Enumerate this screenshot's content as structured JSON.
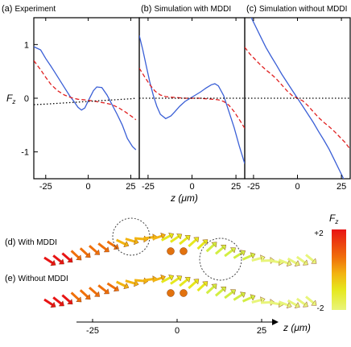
{
  "chart_data": [
    {
      "type": "line",
      "panel": "(a)",
      "title": "Experiment",
      "ylabel": "F",
      "ylabel_sub": "z",
      "xlim": [
        -32,
        30
      ],
      "ylim": [
        -1.5,
        1.5
      ],
      "yticks": [
        1,
        0,
        -1
      ],
      "xticks": [
        -25,
        0,
        25
      ],
      "series": [
        {
          "style": "solid",
          "color": "#3a5fd6",
          "x": [
            -32,
            -28,
            -25,
            -22,
            -20,
            -17,
            -14,
            -11,
            -8,
            -6,
            -4,
            -2,
            0,
            3,
            5,
            8,
            11,
            14,
            17,
            20,
            23,
            26,
            28
          ],
          "y": [
            0.96,
            0.9,
            0.74,
            0.6,
            0.5,
            0.35,
            0.2,
            0.05,
            -0.08,
            -0.17,
            -0.22,
            -0.18,
            -0.05,
            0.14,
            0.21,
            0.2,
            0.06,
            -0.12,
            -0.3,
            -0.5,
            -0.75,
            -0.9,
            -0.96
          ]
        },
        {
          "style": "dashed",
          "color": "#e02020",
          "x": [
            -32,
            -28,
            -25,
            -22,
            -18,
            -14,
            -10,
            -6,
            -2,
            0,
            3,
            6,
            10,
            14,
            18,
            22,
            26,
            28
          ],
          "y": [
            0.7,
            0.53,
            0.39,
            0.26,
            0.14,
            0.06,
            0.01,
            -0.02,
            -0.03,
            -0.04,
            -0.05,
            -0.07,
            -0.09,
            -0.12,
            -0.18,
            -0.26,
            -0.35,
            -0.4
          ]
        },
        {
          "style": "dotted",
          "color": "#000000",
          "x": [
            -32,
            -25,
            -15,
            -5,
            0,
            5,
            15,
            25,
            28
          ],
          "y": [
            -0.12,
            -0.11,
            -0.09,
            -0.07,
            -0.06,
            -0.05,
            -0.03,
            -0.01,
            0.0
          ]
        }
      ]
    },
    {
      "type": "line",
      "panel": "(b)",
      "title": "Simulation with MDDI",
      "xlim": [
        -30,
        30
      ],
      "ylim": [
        -1.5,
        1.5
      ],
      "xticks": [
        -25,
        0,
        25
      ],
      "series": [
        {
          "style": "solid",
          "color": "#3a5fd6",
          "x": [
            -30,
            -28,
            -26,
            -24,
            -22,
            -20,
            -18,
            -15,
            -12,
            -10,
            -7,
            -4,
            -1,
            2,
            5,
            8,
            11,
            13,
            15,
            18,
            21,
            24,
            27,
            30
          ],
          "y": [
            1.17,
            0.9,
            0.6,
            0.3,
            0.05,
            -0.15,
            -0.3,
            -0.38,
            -0.33,
            -0.26,
            -0.15,
            -0.06,
            0.0,
            0.06,
            0.12,
            0.19,
            0.25,
            0.27,
            0.23,
            0.05,
            -0.25,
            -0.55,
            -0.9,
            -1.22
          ]
        },
        {
          "style": "dashed",
          "color": "#e02020",
          "x": [
            -30,
            -27,
            -24,
            -21,
            -18,
            -15,
            -12,
            -8,
            -4,
            0,
            4,
            8,
            12,
            15,
            18,
            21,
            24,
            27,
            30
          ],
          "y": [
            0.56,
            0.4,
            0.25,
            0.13,
            0.06,
            0.03,
            0.02,
            0.01,
            0.0,
            0.0,
            0.0,
            -0.01,
            -0.02,
            -0.03,
            -0.06,
            -0.13,
            -0.25,
            -0.4,
            -0.56
          ]
        },
        {
          "style": "dotted",
          "color": "#000000",
          "x": [
            -30,
            30
          ],
          "y": [
            0.0,
            0.0
          ]
        }
      ]
    },
    {
      "type": "line",
      "panel": "(c)",
      "title": "Simulation without MDDI",
      "xlim": [
        -30,
        30
      ],
      "ylim": [
        -1.5,
        1.5
      ],
      "xticks": [
        -25,
        0,
        25
      ],
      "series": [
        {
          "style": "solid",
          "color": "#3a5fd6",
          "x": [
            -27,
            -24,
            -21,
            -18,
            -15,
            -12,
            -9,
            -6,
            -3,
            0,
            3,
            6,
            9,
            12,
            15,
            18,
            21,
            24,
            27
          ],
          "y": [
            1.55,
            1.35,
            1.15,
            0.95,
            0.78,
            0.62,
            0.45,
            0.3,
            0.15,
            0.0,
            -0.15,
            -0.3,
            -0.45,
            -0.62,
            -0.78,
            -0.95,
            -1.15,
            -1.35,
            -1.55
          ]
        },
        {
          "style": "dashed",
          "color": "#e02020",
          "x": [
            -30,
            -27,
            -24,
            -21,
            -18,
            -15,
            -12,
            -9,
            -6,
            -3,
            0,
            3,
            6,
            9,
            12,
            15,
            18,
            21,
            24,
            27,
            30
          ],
          "y": [
            0.95,
            0.82,
            0.72,
            0.62,
            0.53,
            0.45,
            0.36,
            0.25,
            0.14,
            0.05,
            0.0,
            -0.05,
            -0.14,
            -0.25,
            -0.36,
            -0.45,
            -0.53,
            -0.62,
            -0.72,
            -0.82,
            -0.95
          ]
        },
        {
          "style": "dotted",
          "color": "#000000",
          "x": [
            -30,
            30
          ],
          "y": [
            0.0,
            0.0
          ]
        }
      ]
    }
  ],
  "x_axis_label": "z (μm)",
  "arrows_panels": [
    {
      "label": "(d)",
      "title": "With MDDI",
      "circles": 2
    },
    {
      "label": "(e)",
      "title": "Without MDDI",
      "circles": 0
    }
  ],
  "arrow_axis": {
    "label": "z (μm)",
    "ticks": [
      -25,
      0,
      25
    ]
  },
  "colorbar": {
    "title": "F",
    "title_sub": "z",
    "max_label": "+2",
    "min_label": "-2",
    "colors": [
      "#e81414",
      "#f0700a",
      "#f2b411",
      "#e6e81e",
      "#d2ee42",
      "#e8f57a"
    ]
  },
  "colors": {
    "solid": "#3a5fd6",
    "dashed": "#e02020",
    "dotted": "#000000"
  }
}
